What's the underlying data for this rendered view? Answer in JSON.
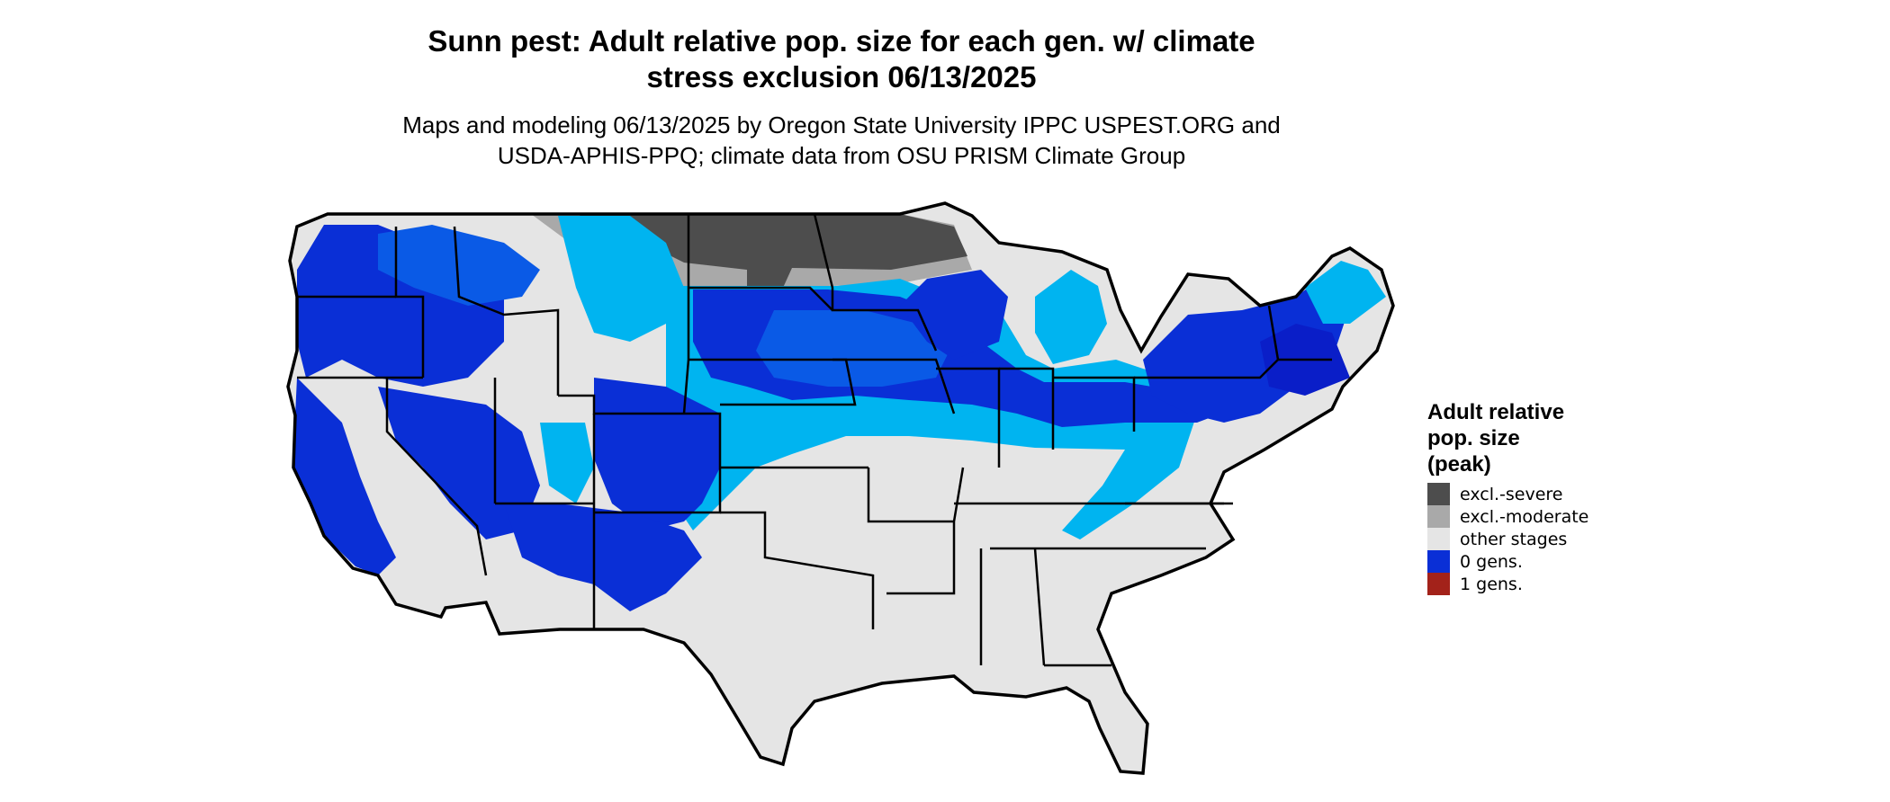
{
  "title": {
    "line1": "Sunn pest: Adult relative pop. size for each gen. w/ climate",
    "line2": "stress exclusion 06/13/2025"
  },
  "subtitle": {
    "line1": "Maps and modeling 06/13/2025 by Oregon State University IPPC USPEST.ORG and",
    "line2": "USDA-APHIS-PPQ; climate data from OSU PRISM Climate Group"
  },
  "legend": {
    "title_line1": "Adult relative",
    "title_line2": "pop. size",
    "title_line3": "(peak)",
    "items": [
      {
        "label": "excl.-severe",
        "color": "#4d4d4d"
      },
      {
        "label": "excl.-moderate",
        "color": "#a9a9a9"
      },
      {
        "label": "other stages",
        "color": "#e5e5e5"
      },
      {
        "label": "0 gens.",
        "color": "#0a2fd6"
      },
      {
        "label": "1 gens.",
        "color": "#a3221a"
      }
    ]
  },
  "palette": {
    "background": "#e5e5e5",
    "light_blue": "#00b4f0",
    "medium_blue": "#0a5ae6",
    "dark_blue": "#0a2fd6",
    "deep_blue": "#0a1ec8",
    "severe": "#4d4d4d",
    "moderate": "#a9a9a9",
    "border": "#000000"
  }
}
